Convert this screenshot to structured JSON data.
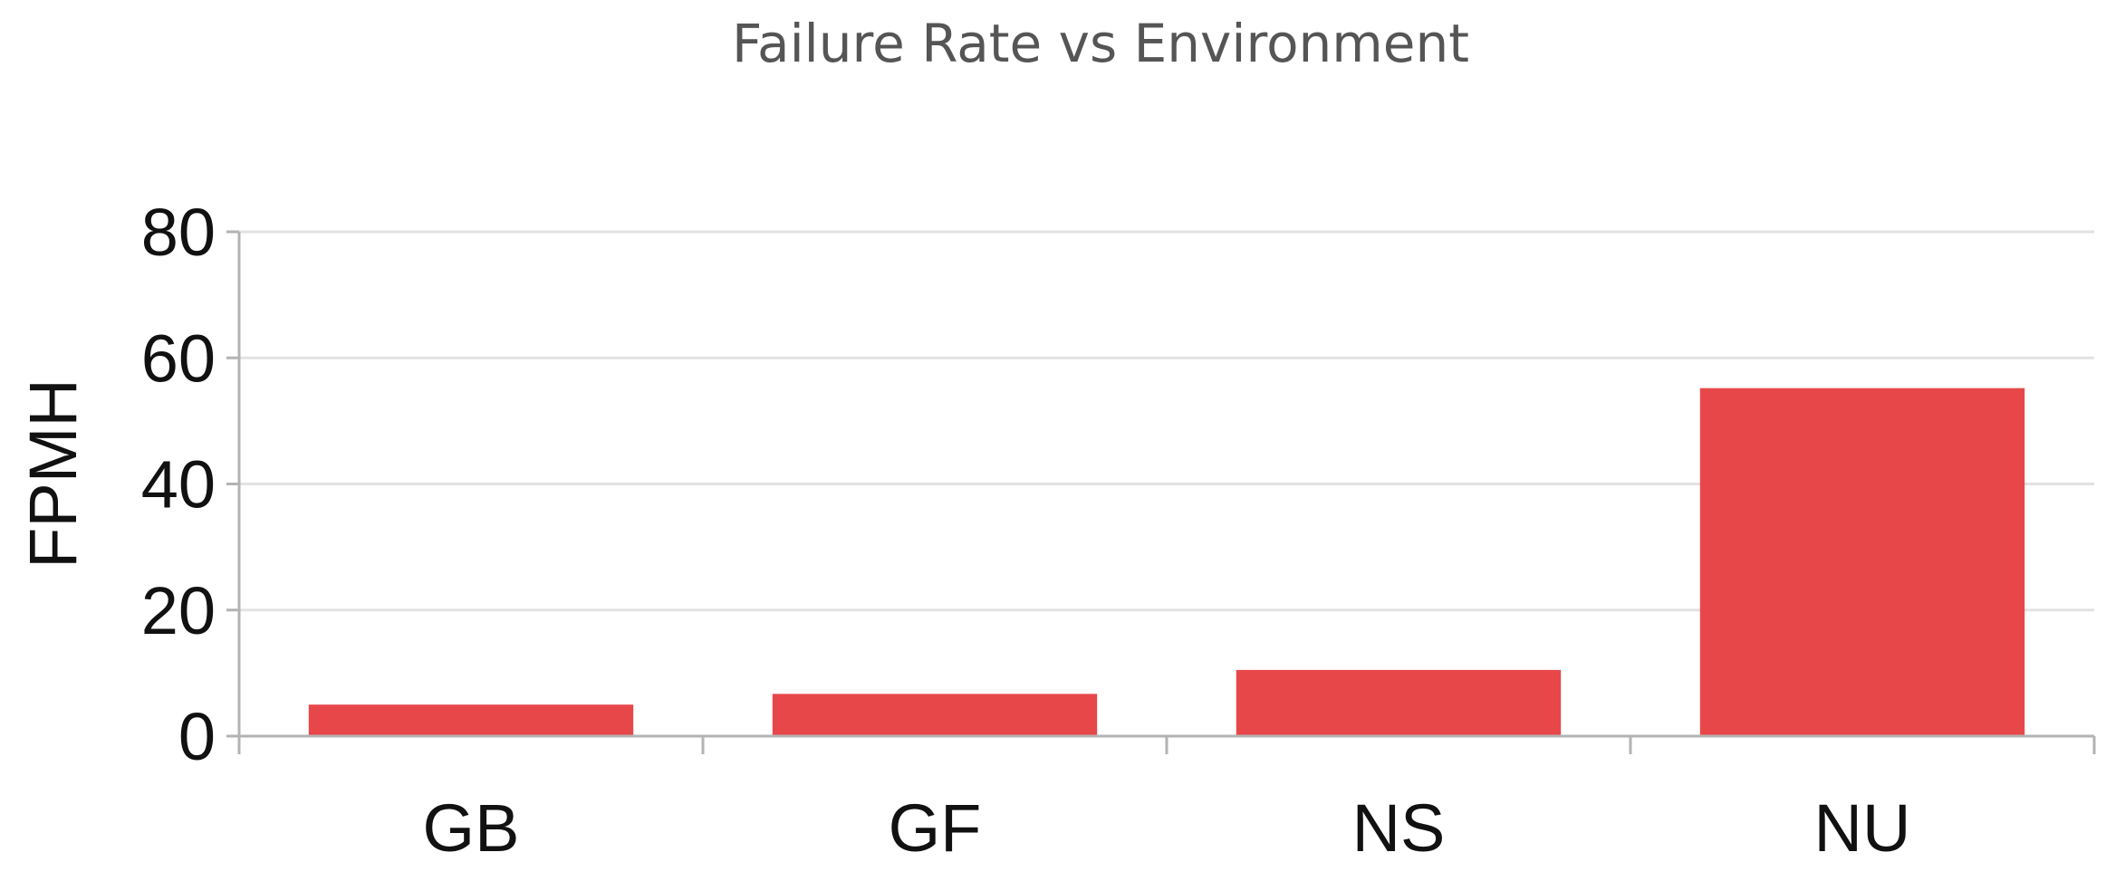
{
  "chart_data": {
    "type": "bar",
    "title": "Failure Rate vs Environment",
    "xlabel": "",
    "ylabel": "FPMH",
    "categories": [
      "GB",
      "GF",
      "NS",
      "NU"
    ],
    "values": [
      5,
      6.7,
      10.5,
      55.2
    ],
    "ylim": [
      0,
      80
    ],
    "yticks": [
      0,
      20,
      40,
      60,
      80
    ],
    "ytick_labels": [
      "0",
      "20",
      "40",
      "60",
      "80"
    ],
    "grid": true,
    "legend": "none",
    "colors": {
      "bar": "#e8474a",
      "title": "#555555",
      "grid": "#e2e2e2",
      "axis": "#b3b3b3",
      "text": "#111111"
    }
  }
}
